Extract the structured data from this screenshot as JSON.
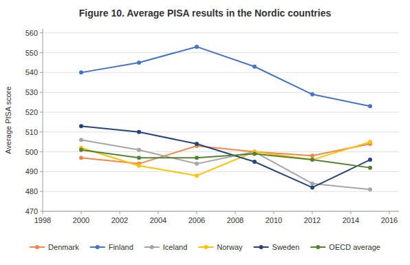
{
  "chart_data": {
    "type": "line",
    "title": "Figure 10. Average PISA results in the Nordic countries",
    "ylabel": "Average PISA score",
    "x": [
      2000,
      2003,
      2006,
      2009,
      2012,
      2015
    ],
    "xlim": [
      1998,
      2016.5
    ],
    "xticks": [
      1998,
      2000,
      2002,
      2004,
      2006,
      2008,
      2010,
      2012,
      2014,
      2016
    ],
    "ylim": [
      470,
      562
    ],
    "yticks": [
      470,
      480,
      490,
      500,
      510,
      520,
      530,
      540,
      550,
      560
    ],
    "grid": true,
    "legend": "bottom",
    "series": [
      {
        "name": "Denmark",
        "color": "#f4864a",
        "marker": "circle",
        "values": [
          497,
          494,
          503,
          500,
          498,
          504
        ]
      },
      {
        "name": "Finland",
        "color": "#4472c4",
        "marker": "circle",
        "values": [
          540,
          545,
          553,
          543,
          529,
          523
        ]
      },
      {
        "name": "Iceland",
        "color": "#a5a5a5",
        "marker": "circle",
        "values": [
          506,
          501,
          494,
          500,
          484,
          481
        ]
      },
      {
        "name": "Norway",
        "color": "#ffc000",
        "marker": "circle",
        "values": [
          502,
          493,
          488,
          500,
          496,
          505
        ]
      },
      {
        "name": "Sweden",
        "color": "#264478",
        "marker": "circle",
        "values": [
          513,
          510,
          504,
          495,
          482,
          496
        ]
      },
      {
        "name": "OECD average",
        "color": "#548235",
        "marker": "circle",
        "values": [
          501,
          497,
          497,
          499,
          496,
          492
        ]
      }
    ]
  }
}
